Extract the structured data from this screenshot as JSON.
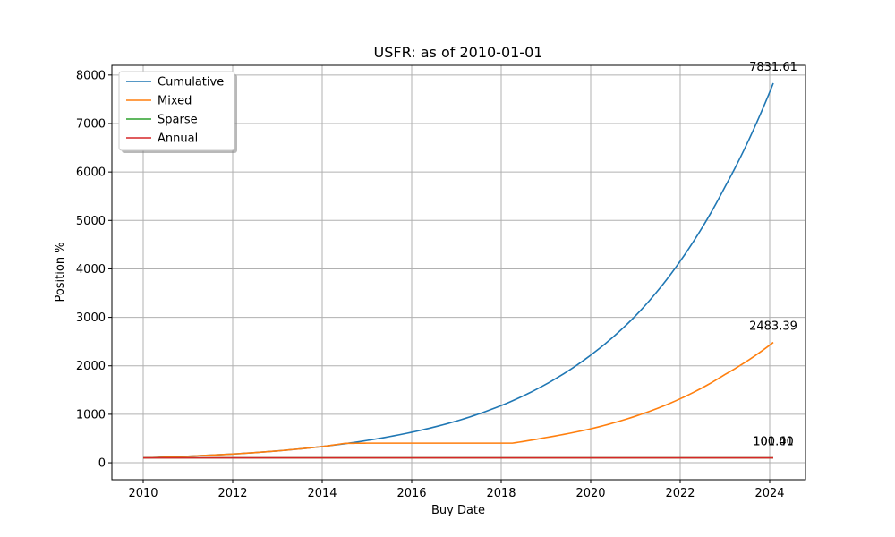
{
  "chart_data": {
    "type": "line",
    "title": "USFR: as of 2010-01-01",
    "xlabel": "Buy Date",
    "ylabel": "Position %",
    "xlim": [
      2009.3,
      2024.8
    ],
    "ylim": [
      -350,
      8200
    ],
    "x_ticks": [
      2010,
      2012,
      2014,
      2016,
      2018,
      2020,
      2022,
      2024
    ],
    "y_ticks": [
      0,
      1000,
      2000,
      3000,
      4000,
      5000,
      6000,
      7000,
      8000
    ],
    "grid": true,
    "legend_position": "top-left",
    "series": [
      {
        "name": "Cumulative",
        "color": "#1f77b4",
        "x": [
          2010,
          2011,
          2012,
          2013,
          2014,
          2015,
          2016,
          2017,
          2018,
          2019,
          2020,
          2021,
          2022,
          2023,
          2024.08
        ],
        "y": [
          100,
          135,
          180,
          245,
          335,
          460,
          630,
          860,
          1180,
          1620,
          2220,
          3030,
          4160,
          5690,
          7831.61
        ],
        "end_label": "7831.61"
      },
      {
        "name": "Mixed",
        "color": "#ff7f0e",
        "x": [
          2010,
          2011,
          2012,
          2013,
          2014,
          2014.5,
          2015,
          2016,
          2017,
          2018.25,
          2019,
          2020,
          2021,
          2022,
          2023,
          2024.08
        ],
        "y": [
          100,
          135,
          180,
          245,
          335,
          400,
          405,
          405,
          405,
          405,
          520,
          700,
          960,
          1320,
          1820,
          2483.39
        ],
        "end_label": "2483.39"
      },
      {
        "name": "Sparse",
        "color": "#2ca02c",
        "x": [
          2010,
          2024.08
        ],
        "y": [
          100.4,
          100.4
        ],
        "end_label": "100.40"
      },
      {
        "name": "Annual",
        "color": "#d62728",
        "x": [
          2010,
          2024.08
        ],
        "y": [
          101.01,
          101.01
        ],
        "end_label": "101.01"
      }
    ]
  }
}
